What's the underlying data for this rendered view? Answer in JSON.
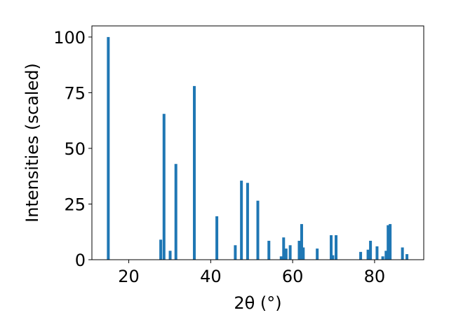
{
  "chart_data": {
    "type": "bar",
    "title": "",
    "xlabel": "2θ (°)",
    "ylabel": "Intensities (scaled)",
    "xlim": [
      11,
      92
    ],
    "ylim": [
      0,
      105
    ],
    "xticks": [
      20,
      40,
      60,
      80
    ],
    "yticks": [
      0,
      25,
      50,
      75,
      100
    ],
    "grid": false,
    "bar_color": "#1f77b4",
    "series": [
      {
        "x": [
          15.0,
          27.8,
          28.6,
          30.1,
          31.5,
          36.0,
          41.5,
          46.0,
          47.5,
          49.0,
          51.5,
          54.2,
          57.2,
          57.8,
          58.4,
          59.4,
          61.6,
          62.2,
          62.6,
          66.0,
          69.4,
          69.8,
          70.6,
          76.6,
          78.4,
          79.0,
          80.6,
          82.0,
          82.8,
          83.3,
          83.8,
          86.8,
          87.9
        ],
        "y": [
          100,
          9,
          65.5,
          4,
          43,
          78,
          19.5,
          6.5,
          35.5,
          34.5,
          26.5,
          8.5,
          1.5,
          10,
          5,
          6.5,
          8.5,
          16,
          5.5,
          5,
          11,
          2,
          11,
          3.5,
          4.5,
          8.5,
          6,
          1.5,
          4,
          15.5,
          16,
          5.5,
          2.5
        ]
      }
    ]
  }
}
